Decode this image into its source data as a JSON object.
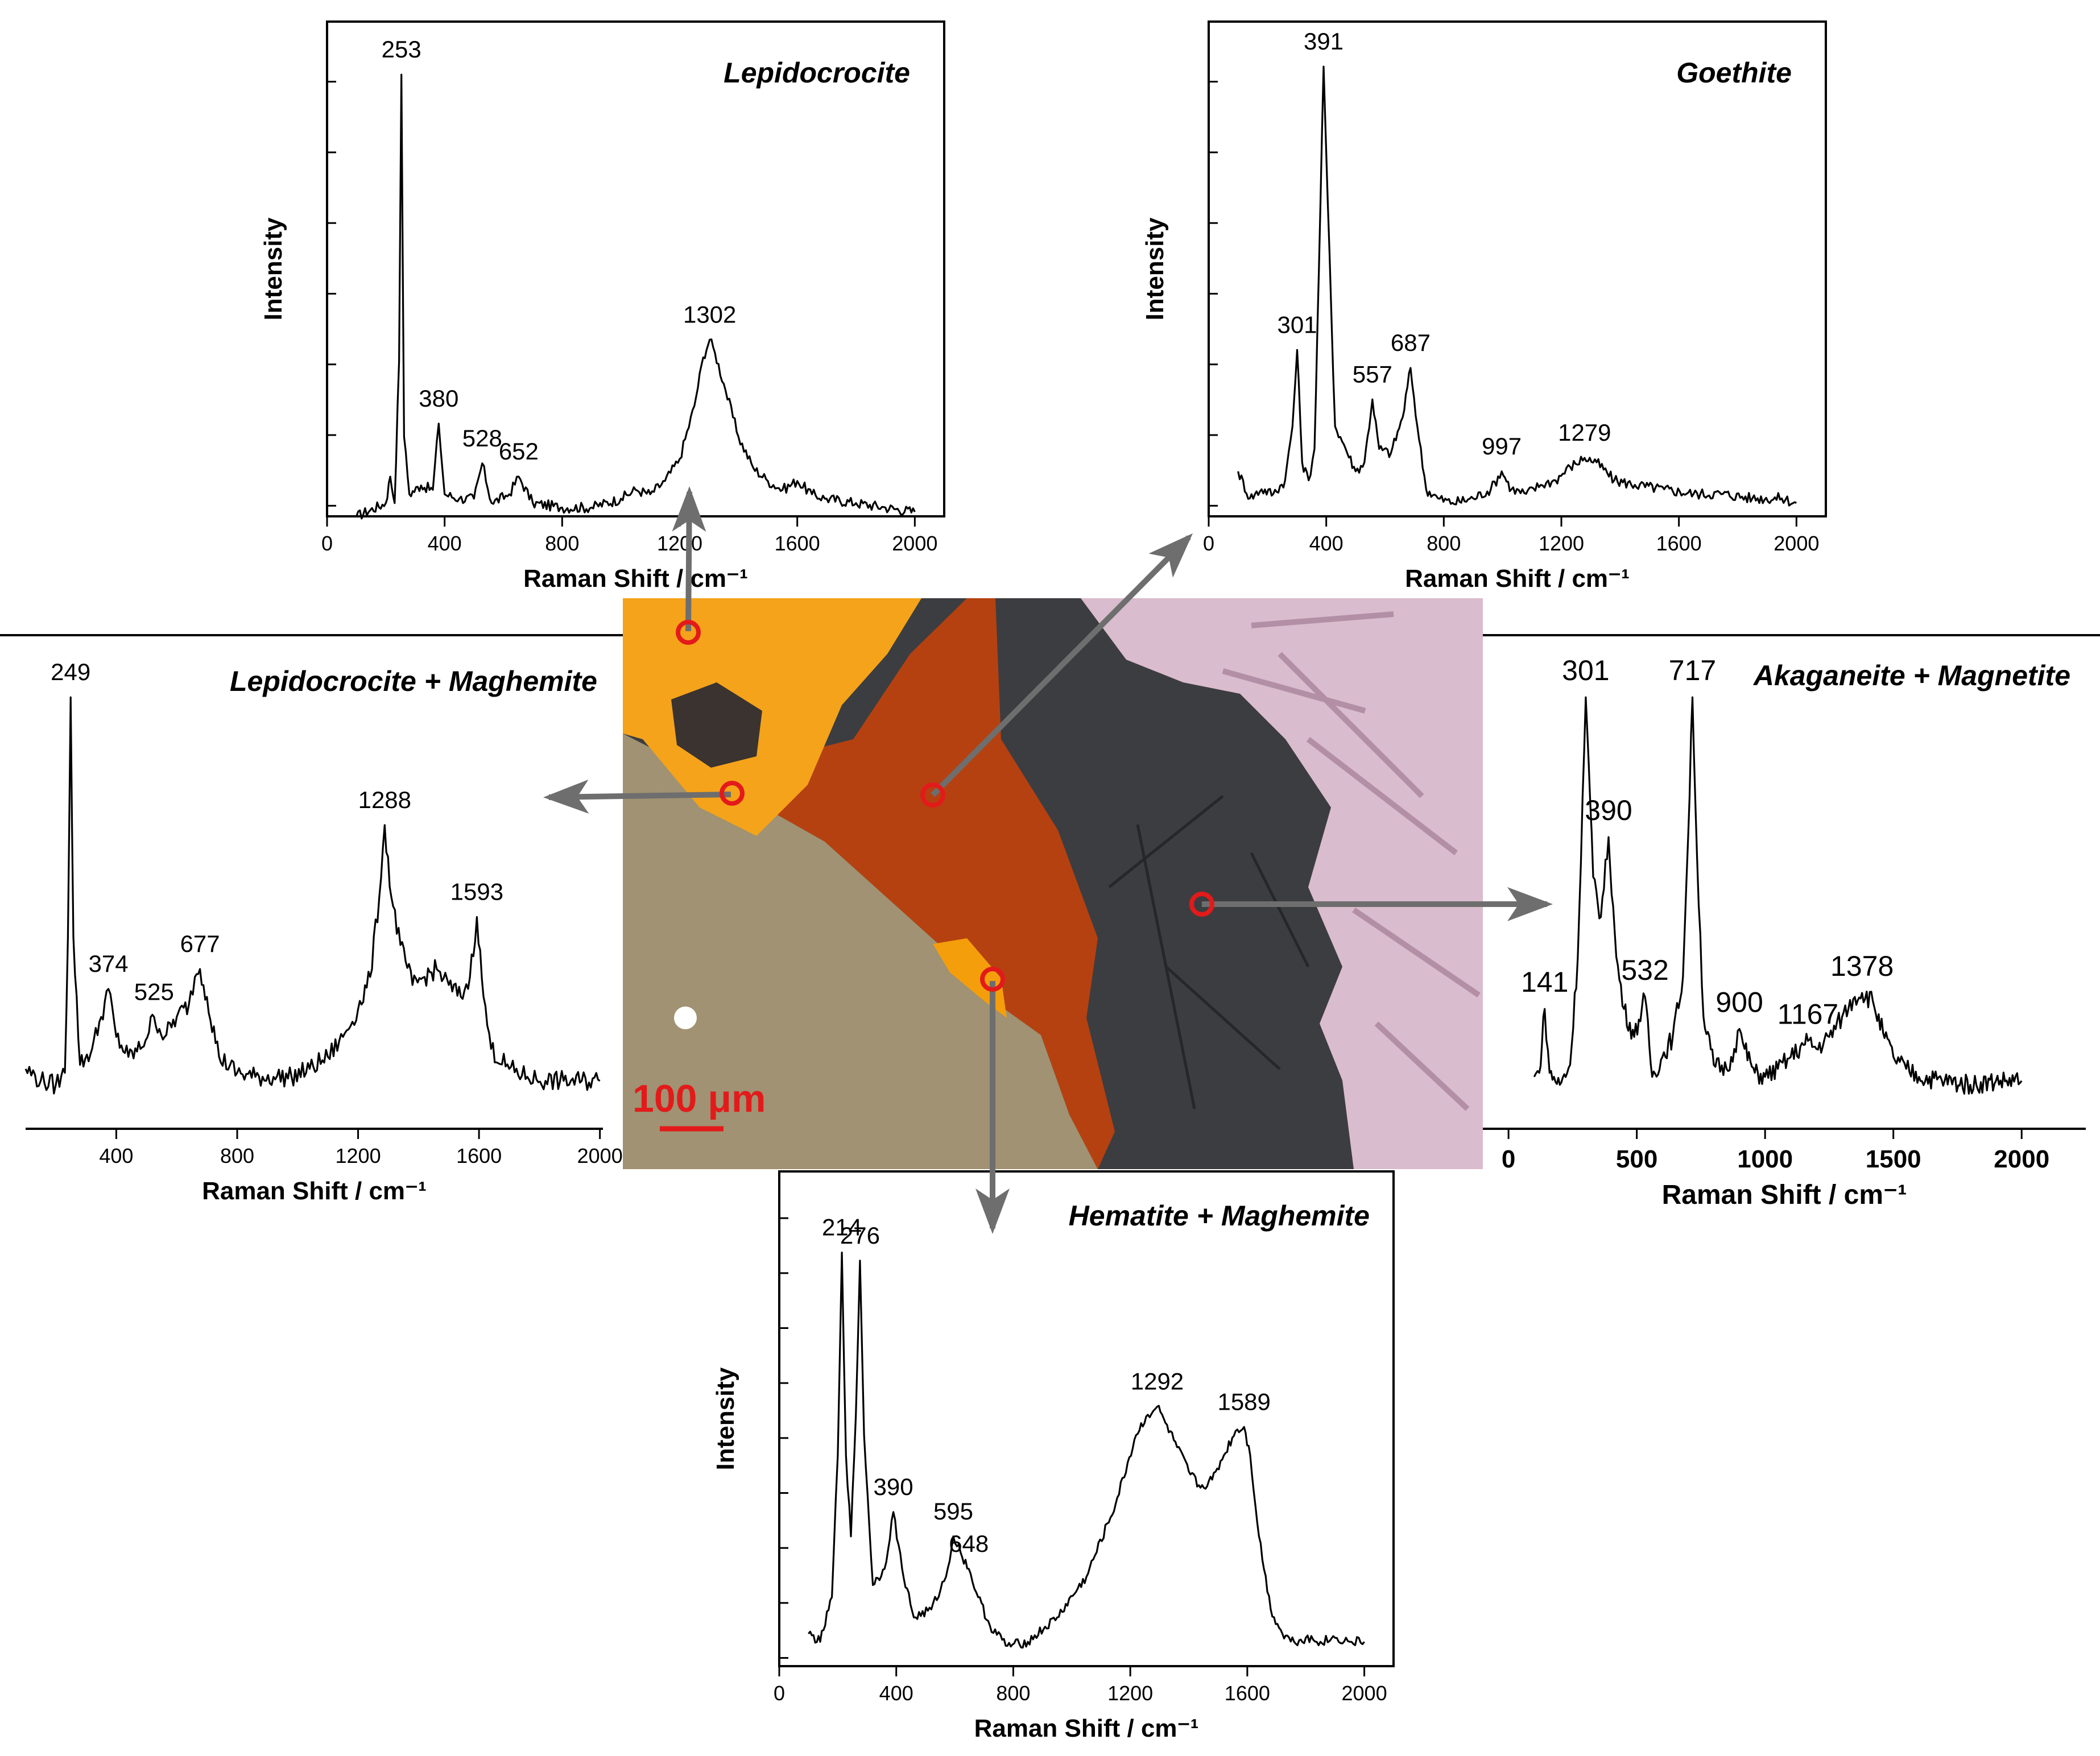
{
  "micrograph": {
    "scale_bar_label": "100 μm",
    "colors": {
      "lepidocrocite_region": "#f5a31a",
      "rust_region": "#c2410c",
      "dark_phase": "#3c3d40",
      "metal_region": "#a09272",
      "crystalline_region": "#d9bccd",
      "marker": "#e31a1a",
      "arrow": "#6e6e6e"
    }
  },
  "chart_data": [
    {
      "id": "lepidocrocite",
      "type": "line",
      "title": "Lepidocrocite",
      "xlabel": "Raman Shift / cm⁻¹",
      "ylabel": "Intensity",
      "xlim": [
        0,
        2100
      ],
      "ylim": [
        0,
        1.12
      ],
      "xticks": [
        0,
        400,
        800,
        1200,
        1600,
        2000
      ],
      "series": [
        {
          "x": [
            100,
            200,
            215,
            230,
            245,
            253,
            262,
            280,
            320,
            360,
            380,
            400,
            450,
            500,
            528,
            560,
            620,
            652,
            700,
            800,
            900,
            1000,
            1050,
            1100,
            1150,
            1200,
            1250,
            1280,
            1302,
            1320,
            1350,
            1400,
            1450,
            1500,
            1550,
            1600,
            1650,
            1700,
            1800,
            1900,
            2000
          ],
          "y": [
            0.0,
            0.03,
            0.09,
            0.03,
            0.35,
            1.0,
            0.18,
            0.05,
            0.07,
            0.06,
            0.21,
            0.05,
            0.04,
            0.04,
            0.12,
            0.03,
            0.05,
            0.09,
            0.03,
            0.02,
            0.02,
            0.04,
            0.06,
            0.05,
            0.08,
            0.13,
            0.25,
            0.36,
            0.4,
            0.37,
            0.3,
            0.18,
            0.11,
            0.08,
            0.06,
            0.08,
            0.05,
            0.04,
            0.03,
            0.02,
            0.01
          ]
        }
      ],
      "annotations": [
        {
          "label": "253",
          "x": 253,
          "y": 1.0
        },
        {
          "label": "380",
          "x": 380,
          "y": 0.21
        },
        {
          "label": "528",
          "x": 528,
          "y": 0.12
        },
        {
          "label": "652",
          "x": 652,
          "y": 0.09
        },
        {
          "label": "1302",
          "x": 1302,
          "y": 0.4
        }
      ]
    },
    {
      "id": "goethite",
      "type": "line",
      "title": "Goethite",
      "xlabel": "Raman Shift / cm⁻¹",
      "ylabel": "Intensity",
      "xlim": [
        0,
        2100
      ],
      "ylim": [
        0,
        1.1
      ],
      "xticks": [
        0,
        400,
        800,
        1200,
        1600,
        2000
      ],
      "series": [
        {
          "x": [
            100,
            140,
            180,
            220,
            260,
            285,
            301,
            318,
            340,
            360,
            375,
            391,
            405,
            430,
            460,
            500,
            530,
            557,
            580,
            620,
            660,
            687,
            710,
            740,
            780,
            830,
            900,
            960,
            997,
            1030,
            1080,
            1130,
            1180,
            1230,
            1279,
            1320,
            1380,
            1450,
            1550,
            1650,
            1750,
            1850,
            1950,
            2000
          ],
          "y": [
            0.1,
            0.04,
            0.06,
            0.05,
            0.08,
            0.2,
            0.37,
            0.12,
            0.08,
            0.15,
            0.55,
            1.0,
            0.7,
            0.2,
            0.16,
            0.1,
            0.12,
            0.26,
            0.15,
            0.14,
            0.22,
            0.33,
            0.2,
            0.06,
            0.04,
            0.03,
            0.04,
            0.06,
            0.1,
            0.06,
            0.05,
            0.07,
            0.08,
            0.11,
            0.13,
            0.12,
            0.08,
            0.07,
            0.06,
            0.05,
            0.05,
            0.04,
            0.04,
            0.03
          ]
        }
      ],
      "annotations": [
        {
          "label": "301",
          "x": 301,
          "y": 0.37
        },
        {
          "label": "391",
          "x": 391,
          "y": 1.0
        },
        {
          "label": "557",
          "x": 557,
          "y": 0.26
        },
        {
          "label": "687",
          "x": 687,
          "y": 0.33
        },
        {
          "label": "997",
          "x": 997,
          "y": 0.1
        },
        {
          "label": "1279",
          "x": 1279,
          "y": 0.13
        }
      ]
    },
    {
      "id": "lepidocrocite-maghemite",
      "type": "line",
      "title": "Lepidocrocite + Maghemite",
      "xlabel": "Raman Shift / cm⁻¹",
      "ylabel": "",
      "xlim": [
        100,
        2010
      ],
      "ylim": [
        -0.08,
        1.08
      ],
      "xticks": [
        400,
        800,
        1200,
        1600,
        2000
      ],
      "series": [
        {
          "x": [
            100,
            150,
            200,
            230,
            240,
            249,
            258,
            280,
            320,
            350,
            374,
            400,
            440,
            480,
            525,
            560,
            600,
            640,
            660,
            677,
            700,
            740,
            800,
            860,
            920,
            980,
            1040,
            1100,
            1150,
            1200,
            1240,
            1270,
            1288,
            1310,
            1340,
            1380,
            1420,
            1460,
            1500,
            1540,
            1570,
            1593,
            1615,
            1640,
            1700,
            1760,
            1820,
            1880,
            1940,
            2000
          ],
          "y": [
            0.07,
            0.04,
            0.03,
            0.06,
            0.4,
            1.0,
            0.4,
            0.08,
            0.12,
            0.2,
            0.27,
            0.15,
            0.1,
            0.12,
            0.2,
            0.15,
            0.2,
            0.23,
            0.3,
            0.32,
            0.25,
            0.1,
            0.06,
            0.05,
            0.05,
            0.05,
            0.07,
            0.1,
            0.15,
            0.22,
            0.3,
            0.5,
            0.68,
            0.5,
            0.38,
            0.28,
            0.3,
            0.32,
            0.28,
            0.25,
            0.3,
            0.45,
            0.25,
            0.12,
            0.07,
            0.05,
            0.04,
            0.04,
            0.04,
            0.04
          ]
        }
      ],
      "annotations": [
        {
          "label": "249",
          "x": 249,
          "y": 1.0
        },
        {
          "label": "374",
          "x": 374,
          "y": 0.27
        },
        {
          "label": "525",
          "x": 525,
          "y": 0.2
        },
        {
          "label": "677",
          "x": 677,
          "y": 0.32
        },
        {
          "label": "1288",
          "x": 1288,
          "y": 0.68
        },
        {
          "label": "1593",
          "x": 1593,
          "y": 0.45
        }
      ]
    },
    {
      "id": "akaganeite-magnetite",
      "type": "line",
      "title": "Akaganeite + Magnetite",
      "xlabel": "Raman Shift / cm⁻¹",
      "ylabel": "",
      "xlim": [
        -100,
        2250
      ],
      "ylim": [
        -0.08,
        1.08
      ],
      "xticks": [
        0,
        500,
        1000,
        1500,
        2000
      ],
      "series": [
        {
          "x": [
            100,
            120,
            141,
            160,
            200,
            240,
            270,
            301,
            330,
            360,
            390,
            420,
            450,
            490,
            532,
            560,
            600,
            640,
            680,
            700,
            717,
            735,
            760,
            800,
            850,
            880,
            900,
            920,
            960,
            1000,
            1050,
            1100,
            1150,
            1167,
            1200,
            1250,
            1300,
            1350,
            1378,
            1420,
            1460,
            1500,
            1550,
            1600,
            1700,
            1800,
            1900,
            2000
          ],
          "y": [
            0.05,
            0.06,
            0.22,
            0.06,
            0.03,
            0.08,
            0.35,
            1.0,
            0.55,
            0.45,
            0.65,
            0.35,
            0.22,
            0.15,
            0.25,
            0.05,
            0.1,
            0.15,
            0.3,
            0.65,
            1.0,
            0.6,
            0.2,
            0.08,
            0.07,
            0.12,
            0.17,
            0.12,
            0.06,
            0.05,
            0.07,
            0.1,
            0.13,
            0.14,
            0.12,
            0.15,
            0.2,
            0.25,
            0.26,
            0.24,
            0.16,
            0.1,
            0.07,
            0.05,
            0.04,
            0.03,
            0.04,
            0.04
          ]
        }
      ],
      "annotations": [
        {
          "label": "141",
          "x": 141,
          "y": 0.22
        },
        {
          "label": "301",
          "x": 301,
          "y": 1.0
        },
        {
          "label": "390",
          "x": 390,
          "y": 0.65
        },
        {
          "label": "532",
          "x": 532,
          "y": 0.25
        },
        {
          "label": "717",
          "x": 717,
          "y": 1.0
        },
        {
          "label": "900",
          "x": 900,
          "y": 0.17
        },
        {
          "label": "1167",
          "x": 1167,
          "y": 0.14
        },
        {
          "label": "1378",
          "x": 1378,
          "y": 0.26
        }
      ]
    },
    {
      "id": "hematite-maghemite",
      "type": "line",
      "title": "Hematite + Maghemite",
      "xlabel": "Raman Shift / cm⁻¹",
      "ylabel": "Intensity",
      "xlim": [
        0,
        2100
      ],
      "ylim": [
        -0.02,
        1.2
      ],
      "xticks": [
        0,
        400,
        800,
        1200,
        1600,
        2000
      ],
      "series": [
        {
          "x": [
            100,
            140,
            180,
            200,
            214,
            228,
            245,
            262,
            276,
            290,
            320,
            360,
            390,
            420,
            460,
            520,
            570,
            595,
            620,
            648,
            680,
            720,
            780,
            850,
            950,
            1050,
            1150,
            1220,
            1260,
            1292,
            1320,
            1360,
            1400,
            1440,
            1480,
            1520,
            1560,
            1589,
            1610,
            1640,
            1680,
            1720,
            1760,
            1800,
            1850,
            1900,
            1950,
            2000
          ],
          "y": [
            0.06,
            0.04,
            0.15,
            0.5,
            1.0,
            0.5,
            0.3,
            0.6,
            0.98,
            0.55,
            0.18,
            0.22,
            0.36,
            0.22,
            0.1,
            0.12,
            0.2,
            0.3,
            0.26,
            0.22,
            0.15,
            0.08,
            0.03,
            0.04,
            0.1,
            0.2,
            0.38,
            0.55,
            0.6,
            0.62,
            0.58,
            0.52,
            0.46,
            0.42,
            0.44,
            0.5,
            0.56,
            0.57,
            0.5,
            0.3,
            0.12,
            0.06,
            0.04,
            0.05,
            0.04,
            0.05,
            0.04,
            0.04
          ]
        }
      ],
      "annotations": [
        {
          "label": "214",
          "x": 214,
          "y": 1.0
        },
        {
          "label": "276",
          "x": 276,
          "y": 0.98
        },
        {
          "label": "390",
          "x": 390,
          "y": 0.36
        },
        {
          "label": "595",
          "x": 595,
          "y": 0.3
        },
        {
          "label": "648",
          "x": 648,
          "y": 0.22
        },
        {
          "label": "1292",
          "x": 1292,
          "y": 0.62
        },
        {
          "label": "1589",
          "x": 1589,
          "y": 0.57
        }
      ]
    }
  ]
}
